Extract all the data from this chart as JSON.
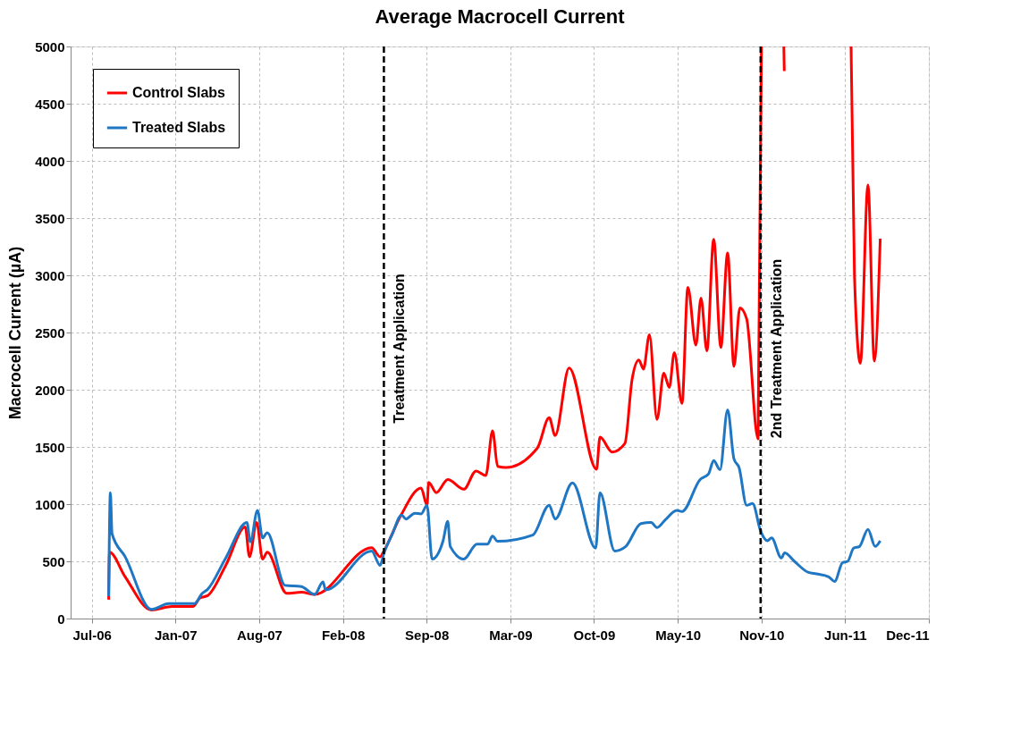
{
  "chart_data": {
    "type": "line",
    "title": "Average Macrocell Current",
    "ylabel": "Macrocell Current (µA)",
    "xlim": [
      "2006-05-26",
      "2011-12-16"
    ],
    "ylim": [
      0,
      5000
    ],
    "xticks": [
      {
        "value": "2006-07-15",
        "label": "Jul-06"
      },
      {
        "value": "2007-01-29",
        "label": "Jan-07"
      },
      {
        "value": "2007-08-15",
        "label": "Aug-07"
      },
      {
        "value": "2008-02-29",
        "label": "Feb-08"
      },
      {
        "value": "2008-09-14",
        "label": "Sep-08"
      },
      {
        "value": "2009-03-31",
        "label": "Mar-09"
      },
      {
        "value": "2009-10-15",
        "label": "Oct-09"
      },
      {
        "value": "2010-05-01",
        "label": "May-10"
      },
      {
        "value": "2010-11-15",
        "label": "Nov-10"
      },
      {
        "value": "2011-06-01",
        "label": "Jun-11"
      },
      {
        "value": "2011-12-16",
        "label": "Dec-11"
      }
    ],
    "yticks": [
      0,
      500,
      1000,
      1500,
      2000,
      2500,
      3000,
      3500,
      4000,
      4500,
      5000
    ],
    "grid": true,
    "legend": "top left",
    "marker": "none",
    "line_style": "solid",
    "ref_lines": [
      {
        "axis": "x",
        "value": "2008-06-05",
        "label": "Treatment Application",
        "color": "#000000",
        "line_style": "dashed"
      },
      {
        "axis": "x",
        "value": "2010-11-13",
        "label": "2nd Treatment Application",
        "color": "#000000",
        "line_style": "dashed"
      }
    ],
    "series": [
      {
        "name": "Control Slabs",
        "color": "#ff0000",
        "x": [
          "2006-08-24",
          "2006-08-26",
          "2006-10-02",
          "2006-12-03",
          "2007-01-21",
          "2007-03-11",
          "2007-03-28",
          "2007-04-15",
          "2007-05-28",
          "2007-07-13",
          "2007-07-23",
          "2007-08-09",
          "2007-08-23",
          "2007-09-03",
          "2007-10-19",
          "2007-11-23",
          "2007-12-24",
          "2008-05-07",
          "2008-05-27",
          "2008-06-05",
          "2008-07-15",
          "2008-09-01",
          "2008-09-15",
          "2008-09-19",
          "2008-10-07",
          "2008-11-03",
          "2008-12-11",
          "2009-01-09",
          "2009-02-01",
          "2009-02-17",
          "2009-03-01",
          "2009-03-21",
          "2009-06-03",
          "2009-07-01",
          "2009-07-15",
          "2009-08-17",
          "2009-10-21",
          "2009-10-29",
          "2009-11-27",
          "2009-12-27",
          "2010-01-13",
          "2010-01-29",
          "2010-02-09",
          "2010-02-23",
          "2010-03-13",
          "2010-03-29",
          "2010-04-11",
          "2010-04-23",
          "2010-05-11",
          "2010-05-25",
          "2010-06-13",
          "2010-06-25",
          "2010-07-09",
          "2010-07-25",
          "2010-08-11",
          "2010-08-27",
          "2010-09-11",
          "2010-09-25",
          "2010-10-11",
          "2010-11-07",
          "2010-11-15",
          "2010-12-01",
          "2011-01-07",
          "2011-01-08",
          "2011-03-01",
          "2011-06-15",
          "2011-06-23",
          "2011-07-07",
          "2011-07-25",
          "2011-08-09",
          "2011-08-23"
        ],
        "values": [
          165,
          580,
          365,
          75,
          105,
          105,
          180,
          200,
          465,
          800,
          540,
          840,
          520,
          580,
          220,
          230,
          210,
          620,
          540,
          590,
          900,
          1140,
          990,
          1190,
          1100,
          1215,
          1130,
          1290,
          1250,
          1640,
          1330,
          1320,
          1490,
          1755,
          1600,
          2190,
          1305,
          1585,
          1455,
          1530,
          2090,
          2260,
          2180,
          2480,
          1740,
          2145,
          2020,
          2325,
          1880,
          2895,
          2390,
          2800,
          2340,
          3315,
          2370,
          3195,
          2205,
          2715,
          2620,
          1570,
          5000,
          null,
          5000,
          4785,
          null,
          5000,
          3000,
          2230,
          3790,
          2250,
          3320
        ]
      },
      {
        "name": "Treated Slabs",
        "color": "#1f77c4",
        "x": [
          "2006-08-24",
          "2006-08-28",
          "2006-09-01",
          "2006-10-02",
          "2006-12-03",
          "2007-01-13",
          "2007-03-15",
          "2007-04-01",
          "2007-04-15",
          "2007-05-28",
          "2007-07-17",
          "2007-07-25",
          "2007-08-11",
          "2007-08-23",
          "2007-09-03",
          "2007-10-15",
          "2007-11-23",
          "2007-12-24",
          "2008-01-13",
          "2008-01-19",
          "2008-05-07",
          "2008-05-27",
          "2008-06-05",
          "2008-06-25",
          "2008-07-17",
          "2008-07-27",
          "2008-08-17",
          "2008-09-01",
          "2008-09-15",
          "2008-09-27",
          "2008-10-23",
          "2008-11-03",
          "2008-11-09",
          "2008-12-11",
          "2009-01-11",
          "2009-02-05",
          "2009-02-17",
          "2009-03-01",
          "2009-05-23",
          "2009-07-01",
          "2009-07-15",
          "2009-08-25",
          "2009-10-19",
          "2009-10-29",
          "2009-12-03",
          "2009-12-29",
          "2010-02-03",
          "2010-02-27",
          "2010-03-13",
          "2010-04-01",
          "2010-04-29",
          "2010-05-11",
          "2010-06-23",
          "2010-07-13",
          "2010-07-25",
          "2010-08-09",
          "2010-08-27",
          "2010-09-11",
          "2010-09-23",
          "2010-10-11",
          "2010-10-25",
          "2010-11-13",
          "2010-11-29",
          "2010-12-09",
          "2011-01-01",
          "2011-01-09",
          "2011-02-01",
          "2011-03-05",
          "2011-03-25",
          "2011-04-23",
          "2011-05-07",
          "2011-05-26",
          "2011-06-07",
          "2011-06-21",
          "2011-07-05",
          "2011-07-25",
          "2011-08-11",
          "2011-08-23"
        ],
        "values": [
          195,
          1100,
          740,
          540,
          80,
          130,
          130,
          215,
          255,
          530,
          840,
          670,
          945,
          705,
          750,
          290,
          280,
          210,
          320,
          250,
          590,
          465,
          570,
          740,
          905,
          870,
          920,
          915,
          990,
          520,
          680,
          850,
          630,
          520,
          650,
          650,
          720,
          675,
          730,
          990,
          870,
          1185,
          615,
          1100,
          590,
          630,
          830,
          840,
          795,
          860,
          945,
          935,
          1215,
          1265,
          1380,
          1300,
          1825,
          1395,
          1320,
          990,
          1005,
          765,
          680,
          705,
          530,
          575,
          500,
          405,
          390,
          365,
          325,
          490,
          500,
          615,
          630,
          780,
          630,
          680
        ]
      }
    ]
  }
}
